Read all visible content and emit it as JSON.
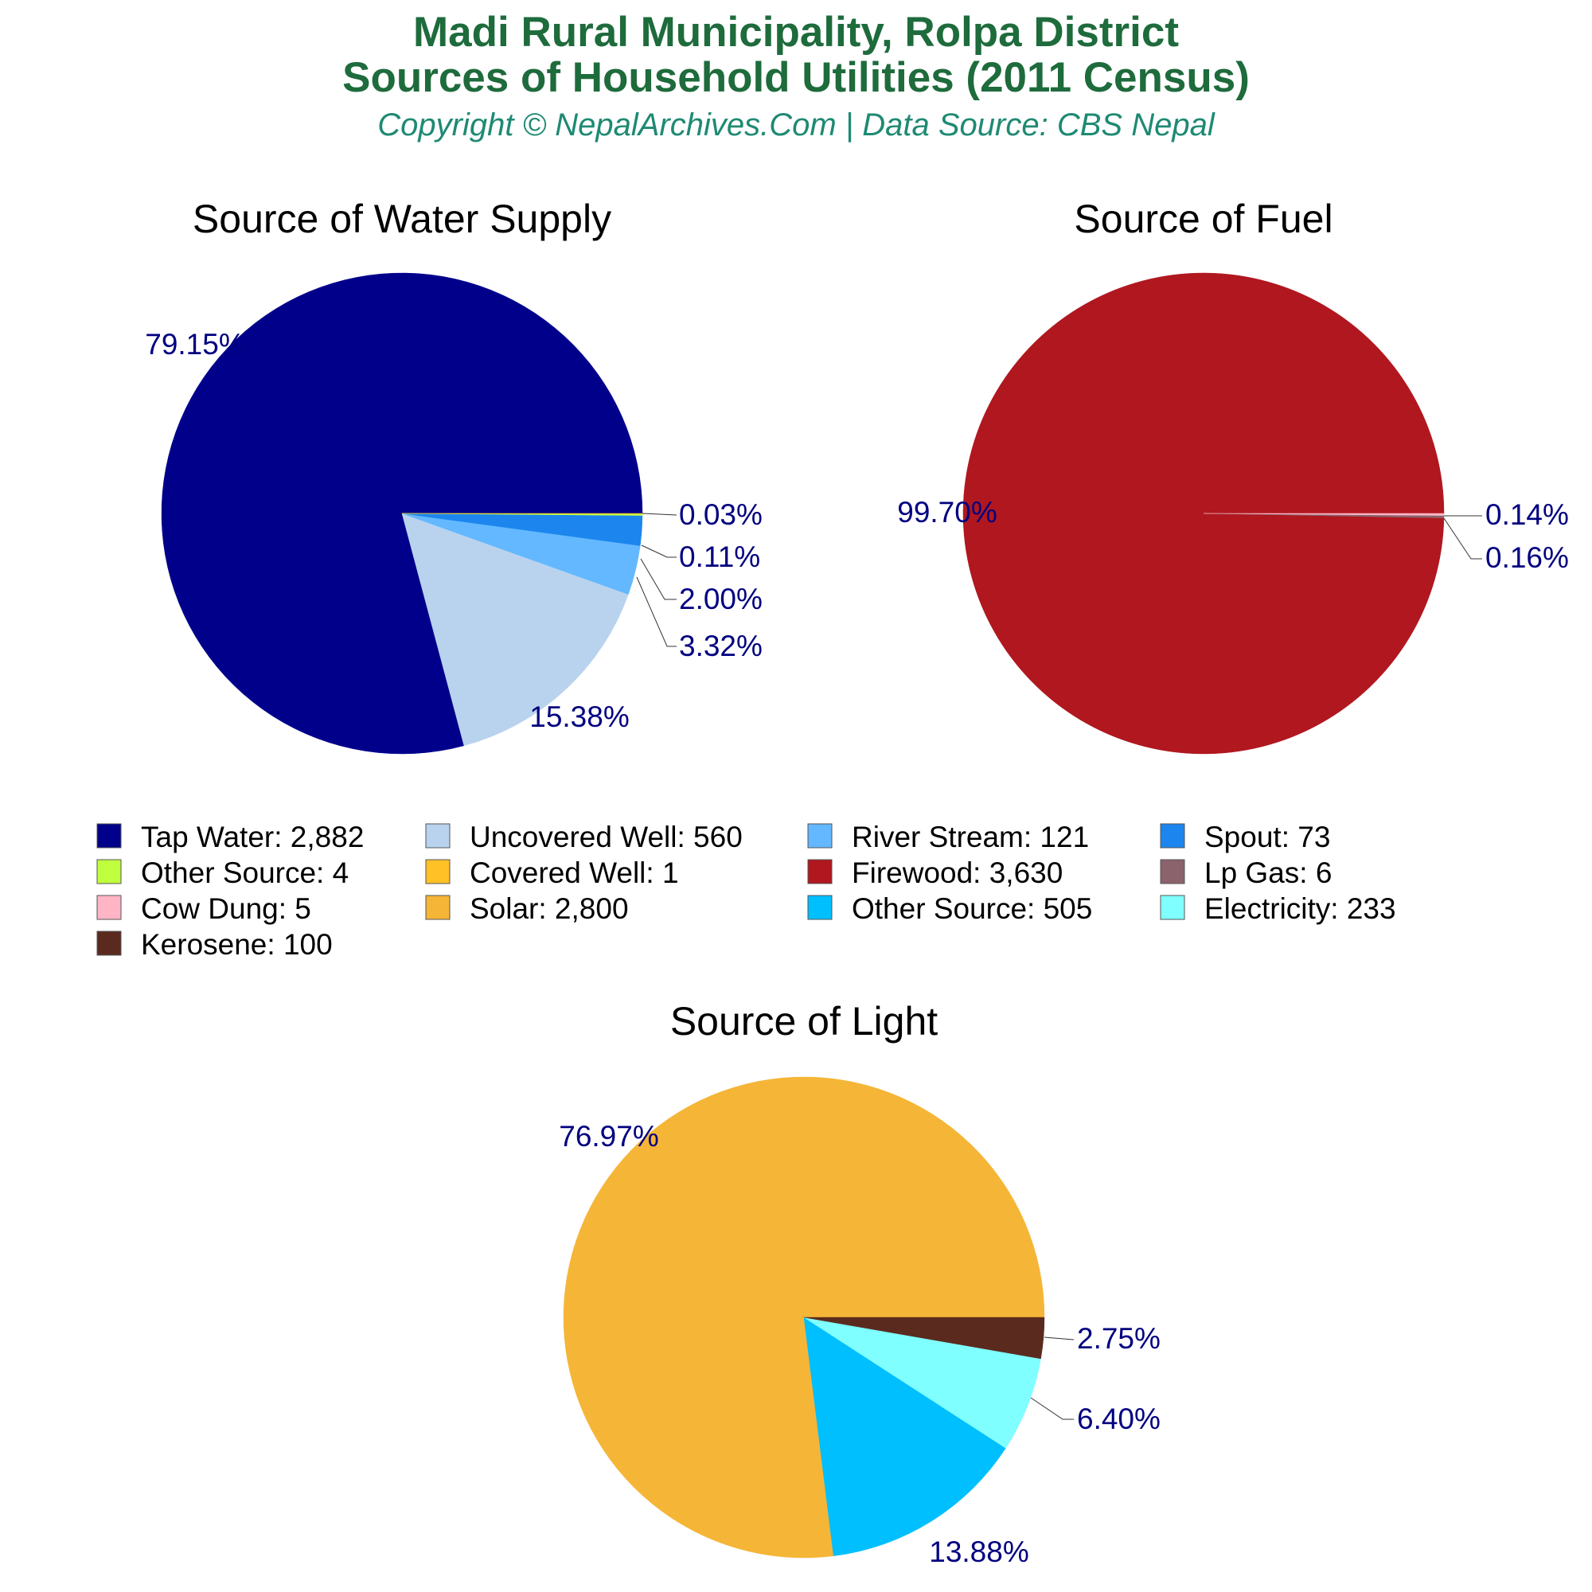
{
  "header": {
    "title_line1": "Madi Rural Municipality, Rolpa District",
    "title_line2": "Sources of Household Utilities (2011 Census)",
    "subtitle": "Copyright © NepalArchives.Com | Data Source: CBS Nepal",
    "title_color": "#1e6b3c",
    "subtitle_color": "#1e8a73"
  },
  "label_color": "#000080",
  "chart_data": [
    {
      "type": "pie",
      "title": "Source of Water Supply",
      "slices": [
        {
          "label": "Tap Water",
          "value": 2882,
          "value_text": "2,882",
          "percent": "79.15%",
          "color": "#00008b"
        },
        {
          "label": "Uncovered Well",
          "value": 560,
          "value_text": "560",
          "percent": "15.38%",
          "color": "#b9d3ee"
        },
        {
          "label": "River Stream",
          "value": 121,
          "value_text": "121",
          "percent": "3.32%",
          "color": "#63b8ff"
        },
        {
          "label": "Spout",
          "value": 73,
          "value_text": "73",
          "percent": "2.00%",
          "color": "#1c86ee"
        },
        {
          "label": "Other Source",
          "value": 4,
          "value_text": "4",
          "percent": "0.11%",
          "color": "#c0ff3e"
        },
        {
          "label": "Covered Well",
          "value": 1,
          "value_text": "1",
          "percent": "0.03%",
          "color": "#ffc125"
        }
      ]
    },
    {
      "type": "pie",
      "title": "Source of Fuel",
      "slices": [
        {
          "label": "Firewood",
          "value": 3630,
          "value_text": "3,630",
          "percent": "99.70%",
          "color": "#b0171f"
        },
        {
          "label": "Lp Gas",
          "value": 6,
          "value_text": "6",
          "percent": "0.16%",
          "color": "#8b636c"
        },
        {
          "label": "Cow Dung",
          "value": 5,
          "value_text": "5",
          "percent": "0.14%",
          "color": "#ffb5c5"
        }
      ]
    },
    {
      "type": "pie",
      "title": "Source of Light",
      "slices": [
        {
          "label": "Solar",
          "value": 2800,
          "value_text": "2,800",
          "percent": "76.97%",
          "color": "#f5b537"
        },
        {
          "label": "Other Source",
          "value": 505,
          "value_text": "505",
          "percent": "13.88%",
          "color": "#00bfff"
        },
        {
          "label": "Electricity",
          "value": 233,
          "value_text": "233",
          "percent": "6.40%",
          "color": "#7fffff"
        },
        {
          "label": "Kerosene",
          "value": 100,
          "value_text": "100",
          "percent": "2.75%",
          "color": "#5a2a1e"
        }
      ]
    }
  ],
  "legend": [
    {
      "text": "Tap Water: 2,882",
      "color": "#00008b"
    },
    {
      "text": "Uncovered Well: 560",
      "color": "#b9d3ee"
    },
    {
      "text": "River Stream: 121",
      "color": "#63b8ff"
    },
    {
      "text": "Spout: 73",
      "color": "#1c86ee"
    },
    {
      "text": "Other Source: 4",
      "color": "#c0ff3e"
    },
    {
      "text": "Covered Well: 1",
      "color": "#ffc125"
    },
    {
      "text": "Firewood: 3,630",
      "color": "#b0171f"
    },
    {
      "text": "Lp Gas: 6",
      "color": "#8b636c"
    },
    {
      "text": "Cow Dung: 5",
      "color": "#ffb5c5"
    },
    {
      "text": "Solar: 2,800",
      "color": "#f5b537"
    },
    {
      "text": "Other Source: 505",
      "color": "#00bfff"
    },
    {
      "text": "Electricity: 233",
      "color": "#7fffff"
    },
    {
      "text": "Kerosene: 100",
      "color": "#5a2a1e"
    }
  ]
}
